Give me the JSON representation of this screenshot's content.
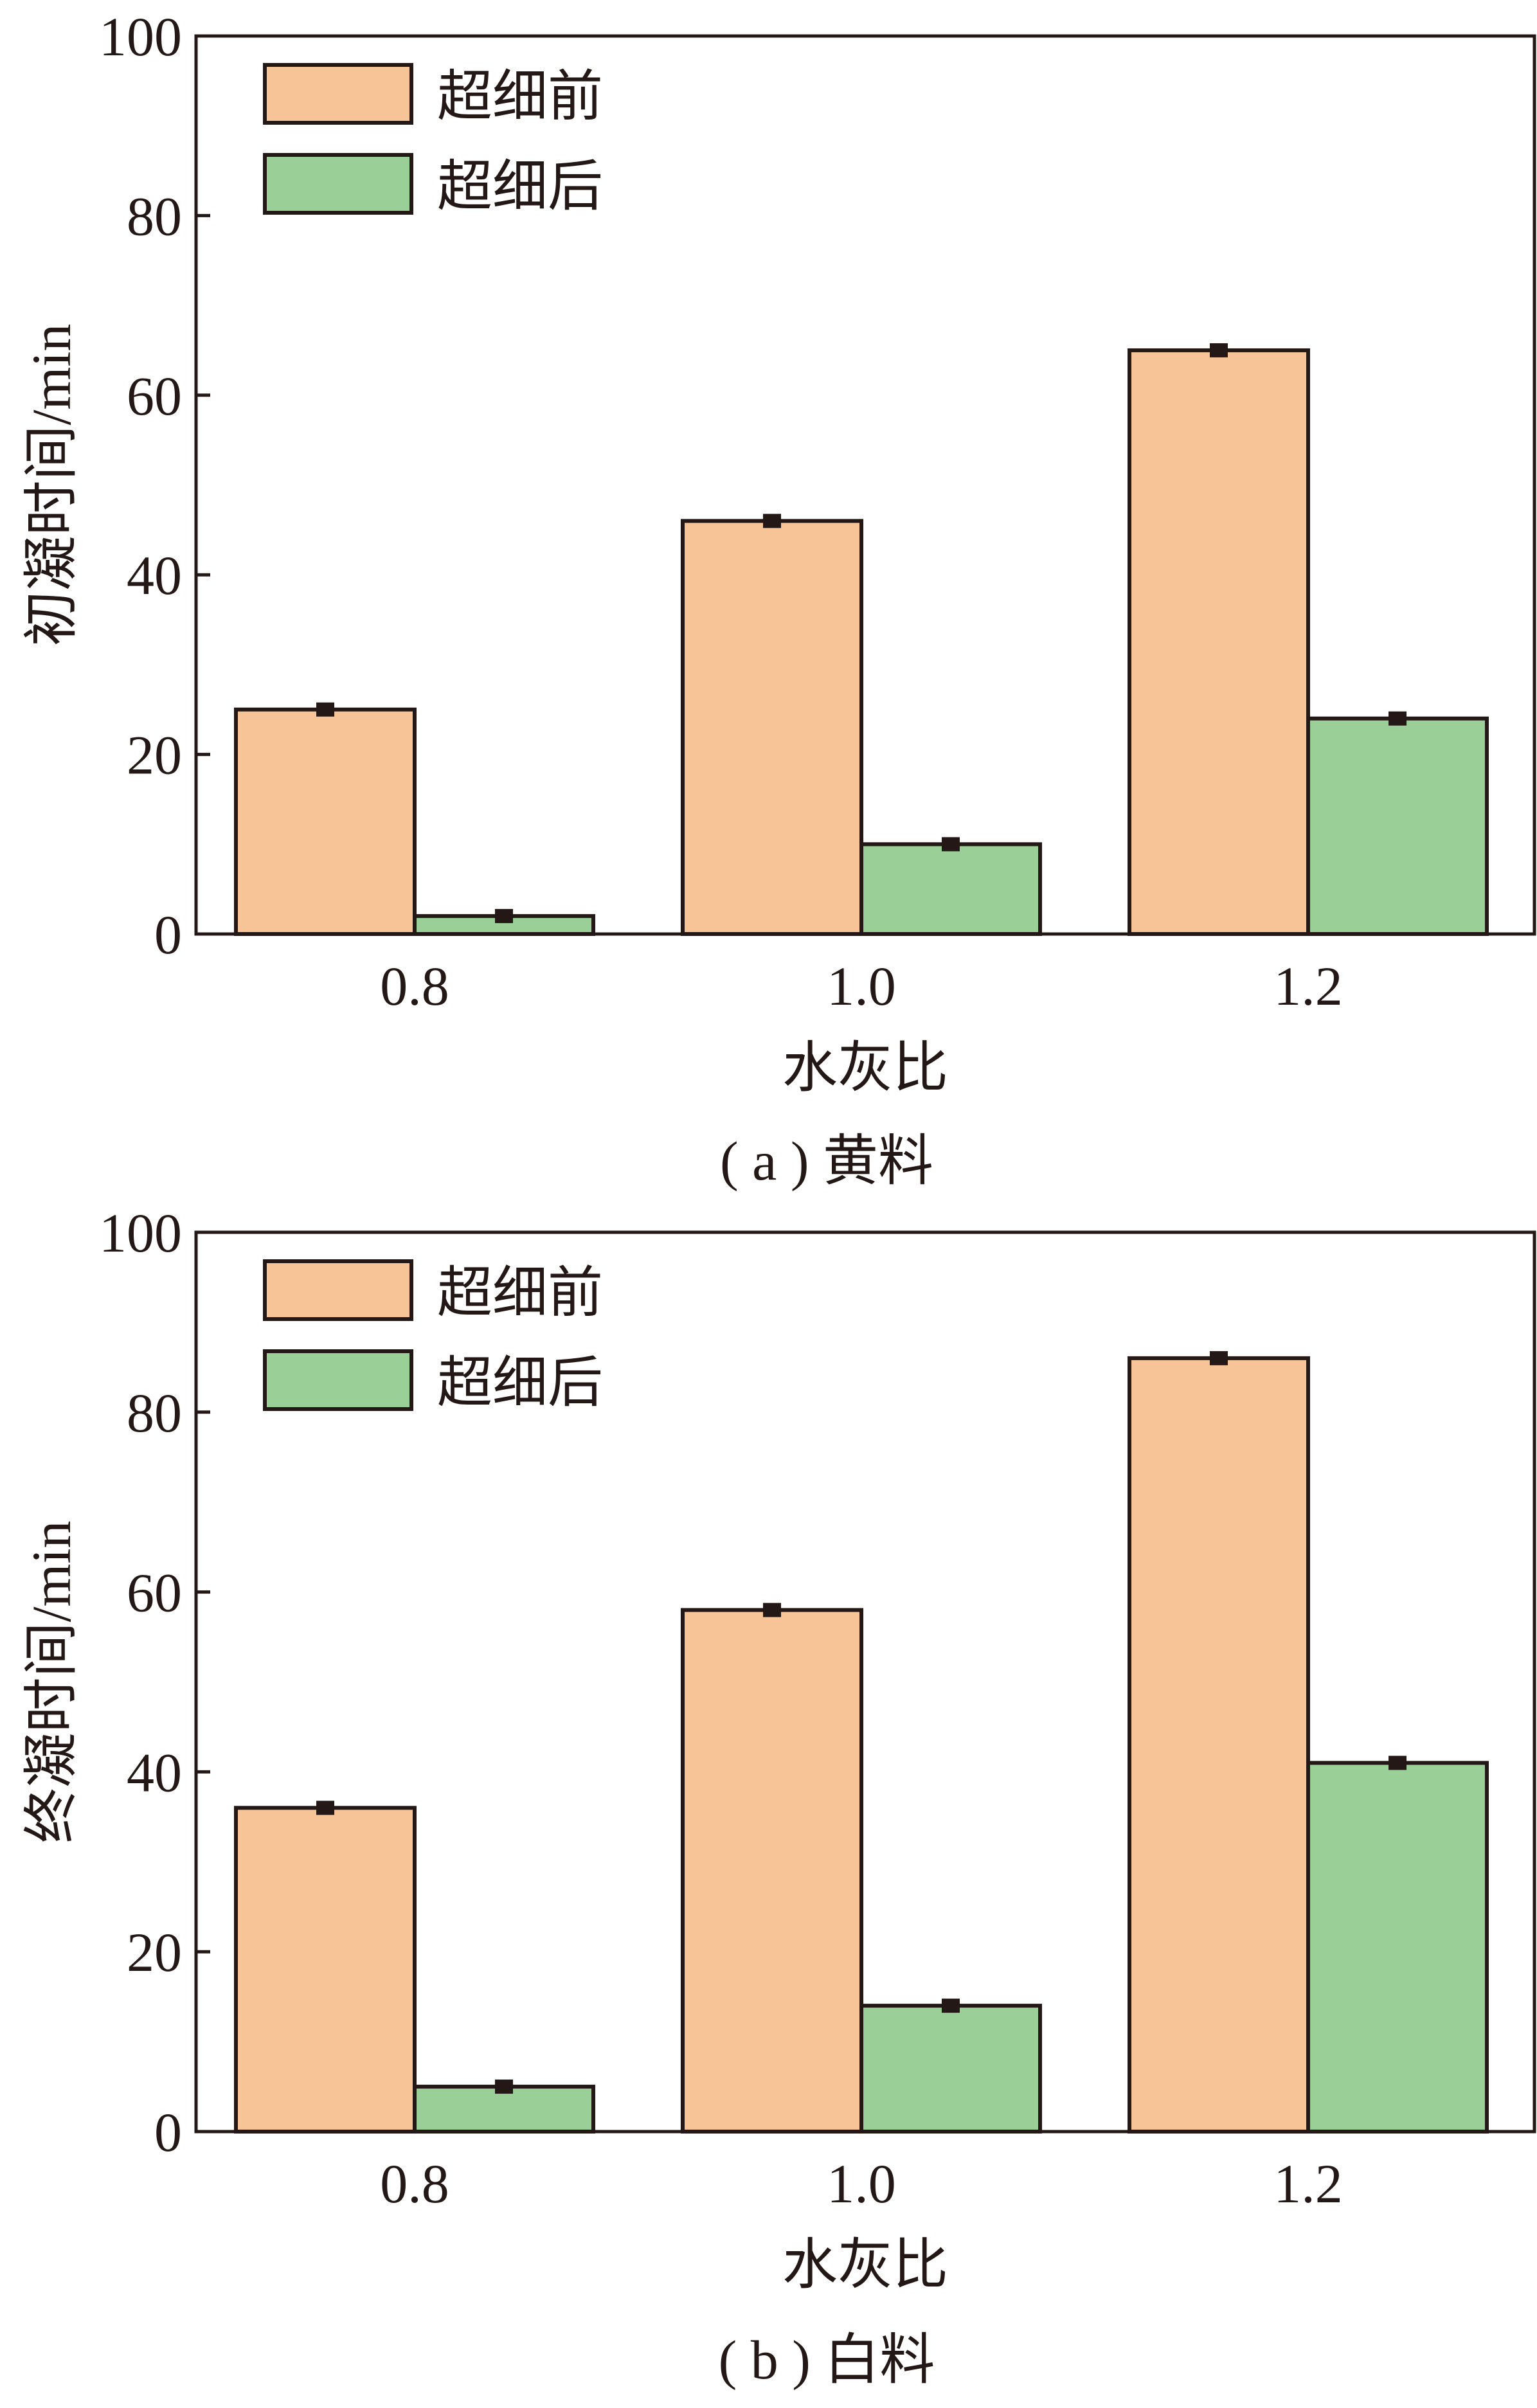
{
  "colors": {
    "before": "#F6C497",
    "after": "#9ACF98",
    "stroke": "#231815"
  },
  "chart_data": [
    {
      "type": "bar",
      "caption": "( a ) 黄料",
      "xlabel": "水灰比",
      "ylabel": "初凝时间/min",
      "categories": [
        "0.8",
        "1.0",
        "1.2"
      ],
      "ylim": [
        0,
        100
      ],
      "yticks": [
        "0",
        "20",
        "40",
        "60",
        "80",
        "100"
      ],
      "legend_position": "top-left",
      "series": [
        {
          "name": "超细前",
          "values": [
            25,
            46,
            65
          ],
          "error": [
            0.5,
            0.5,
            0.5
          ]
        },
        {
          "name": "超细后",
          "values": [
            2,
            10,
            24
          ],
          "error": [
            0.5,
            0.5,
            0.5
          ]
        }
      ]
    },
    {
      "type": "bar",
      "caption": "( b ) 白料",
      "xlabel": "水灰比",
      "ylabel": "终凝时间/min",
      "categories": [
        "0.8",
        "1.0",
        "1.2"
      ],
      "ylim": [
        0,
        100
      ],
      "yticks": [
        "0",
        "20",
        "40",
        "60",
        "80",
        "100"
      ],
      "legend_position": "top-left",
      "series": [
        {
          "name": "超细前",
          "values": [
            36,
            58,
            86
          ],
          "error": [
            0.5,
            0.5,
            0.5
          ]
        },
        {
          "name": "超细后",
          "values": [
            5,
            14,
            41
          ],
          "error": [
            0.5,
            0.5,
            0.5
          ]
        }
      ]
    }
  ]
}
